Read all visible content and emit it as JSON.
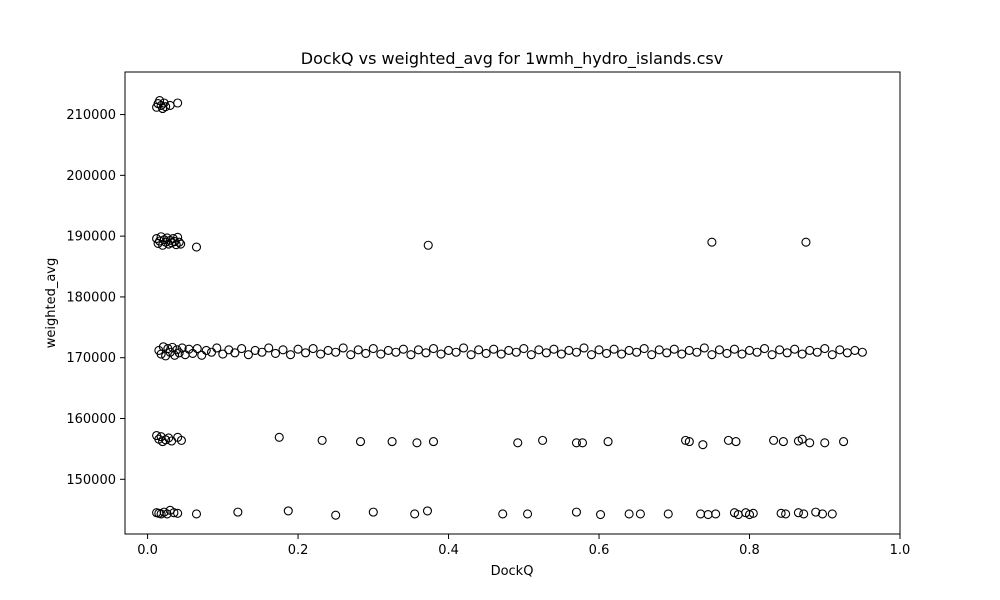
{
  "chart_data": {
    "type": "scatter",
    "title": "DockQ vs weighted_avg for 1wmh_hydro_islands.csv",
    "xlabel": "DockQ",
    "ylabel": "weighted_avg",
    "xlim": [
      -0.03,
      1.0
    ],
    "ylim": [
      141000,
      217000
    ],
    "xticks": [
      0.0,
      0.2,
      0.4,
      0.6,
      0.8,
      1.0
    ],
    "xtick_labels": [
      "0.0",
      "0.2",
      "0.4",
      "0.6",
      "0.8",
      "1.0"
    ],
    "yticks": [
      150000,
      160000,
      170000,
      180000,
      190000,
      200000,
      210000
    ],
    "ytick_labels": [
      "150000",
      "160000",
      "170000",
      "180000",
      "190000",
      "200000",
      "210000"
    ],
    "grid": false,
    "marker": "open-circle",
    "marker_color": "#000000",
    "series": [
      {
        "points": [
          [
            0.012,
            211200
          ],
          [
            0.014,
            211800
          ],
          [
            0.016,
            212300
          ],
          [
            0.018,
            211500
          ],
          [
            0.02,
            211000
          ],
          [
            0.022,
            211900
          ],
          [
            0.024,
            211300
          ],
          [
            0.03,
            211500
          ],
          [
            0.04,
            211900
          ],
          [
            0.012,
            189600
          ],
          [
            0.014,
            188800
          ],
          [
            0.016,
            189200
          ],
          [
            0.018,
            189900
          ],
          [
            0.02,
            188500
          ],
          [
            0.022,
            189400
          ],
          [
            0.024,
            189000
          ],
          [
            0.026,
            189700
          ],
          [
            0.028,
            188700
          ],
          [
            0.03,
            189300
          ],
          [
            0.032,
            188900
          ],
          [
            0.034,
            189600
          ],
          [
            0.036,
            189100
          ],
          [
            0.038,
            188600
          ],
          [
            0.04,
            189800
          ],
          [
            0.042,
            189000
          ],
          [
            0.044,
            188700
          ],
          [
            0.065,
            188200
          ],
          [
            0.373,
            188500
          ],
          [
            0.75,
            189000
          ],
          [
            0.875,
            189000
          ],
          [
            0.012,
            157200
          ],
          [
            0.015,
            156600
          ],
          [
            0.018,
            157000
          ],
          [
            0.02,
            156200
          ],
          [
            0.024,
            156500
          ],
          [
            0.028,
            156800
          ],
          [
            0.032,
            156300
          ],
          [
            0.04,
            156900
          ],
          [
            0.045,
            156400
          ],
          [
            0.175,
            156900
          ],
          [
            0.232,
            156400
          ],
          [
            0.283,
            156200
          ],
          [
            0.325,
            156200
          ],
          [
            0.358,
            156000
          ],
          [
            0.38,
            156200
          ],
          [
            0.492,
            156000
          ],
          [
            0.525,
            156400
          ],
          [
            0.57,
            156000
          ],
          [
            0.578,
            156000
          ],
          [
            0.612,
            156200
          ],
          [
            0.715,
            156400
          ],
          [
            0.72,
            156200
          ],
          [
            0.738,
            155700
          ],
          [
            0.772,
            156400
          ],
          [
            0.782,
            156200
          ],
          [
            0.832,
            156400
          ],
          [
            0.845,
            156200
          ],
          [
            0.865,
            156300
          ],
          [
            0.87,
            156600
          ],
          [
            0.88,
            156000
          ],
          [
            0.9,
            156000
          ],
          [
            0.925,
            156200
          ],
          [
            0.012,
            144500
          ],
          [
            0.015,
            144400
          ],
          [
            0.018,
            144300
          ],
          [
            0.022,
            144600
          ],
          [
            0.026,
            144300
          ],
          [
            0.03,
            144900
          ],
          [
            0.035,
            144500
          ],
          [
            0.04,
            144400
          ],
          [
            0.065,
            144300
          ],
          [
            0.12,
            144600
          ],
          [
            0.187,
            144800
          ],
          [
            0.25,
            144100
          ],
          [
            0.3,
            144600
          ],
          [
            0.355,
            144300
          ],
          [
            0.372,
            144800
          ],
          [
            0.472,
            144300
          ],
          [
            0.505,
            144300
          ],
          [
            0.57,
            144600
          ],
          [
            0.602,
            144200
          ],
          [
            0.64,
            144300
          ],
          [
            0.655,
            144300
          ],
          [
            0.692,
            144300
          ],
          [
            0.735,
            144300
          ],
          [
            0.745,
            144200
          ],
          [
            0.755,
            144300
          ],
          [
            0.78,
            144500
          ],
          [
            0.785,
            144200
          ],
          [
            0.795,
            144500
          ],
          [
            0.8,
            144200
          ],
          [
            0.805,
            144400
          ],
          [
            0.842,
            144400
          ],
          [
            0.848,
            144300
          ],
          [
            0.865,
            144500
          ],
          [
            0.872,
            144300
          ],
          [
            0.888,
            144600
          ],
          [
            0.897,
            144300
          ],
          [
            0.91,
            144300
          ],
          [
            0.015,
            171200
          ],
          [
            0.018,
            170600
          ],
          [
            0.021,
            171800
          ],
          [
            0.024,
            170300
          ],
          [
            0.027,
            171500
          ],
          [
            0.03,
            170900
          ],
          [
            0.033,
            171700
          ],
          [
            0.036,
            170400
          ],
          [
            0.039,
            171300
          ],
          [
            0.042,
            170800
          ],
          [
            0.046,
            171600
          ],
          [
            0.05,
            170500
          ],
          [
            0.055,
            171400
          ],
          [
            0.06,
            170700
          ],
          [
            0.066,
            171500
          ],
          [
            0.072,
            170400
          ],
          [
            0.078,
            171200
          ],
          [
            0.085,
            170900
          ],
          [
            0.092,
            171600
          ],
          [
            0.1,
            170600
          ],
          [
            0.108,
            171300
          ],
          [
            0.116,
            170800
          ],
          [
            0.125,
            171500
          ],
          [
            0.134,
            170500
          ],
          [
            0.143,
            171200
          ],
          [
            0.152,
            170900
          ],
          [
            0.161,
            171600
          ],
          [
            0.17,
            170700
          ],
          [
            0.18,
            171300
          ],
          [
            0.19,
            170500
          ],
          [
            0.2,
            171400
          ],
          [
            0.21,
            170800
          ],
          [
            0.22,
            171500
          ],
          [
            0.23,
            170600
          ],
          [
            0.24,
            171200
          ],
          [
            0.25,
            170900
          ],
          [
            0.26,
            171600
          ],
          [
            0.27,
            170500
          ],
          [
            0.28,
            171300
          ],
          [
            0.29,
            170700
          ],
          [
            0.3,
            171500
          ],
          [
            0.31,
            170600
          ],
          [
            0.32,
            171200
          ],
          [
            0.33,
            170900
          ],
          [
            0.34,
            171400
          ],
          [
            0.35,
            170500
          ],
          [
            0.36,
            171300
          ],
          [
            0.37,
            170800
          ],
          [
            0.38,
            171500
          ],
          [
            0.39,
            170600
          ],
          [
            0.4,
            171200
          ],
          [
            0.41,
            170900
          ],
          [
            0.42,
            171600
          ],
          [
            0.43,
            170500
          ],
          [
            0.44,
            171300
          ],
          [
            0.45,
            170700
          ],
          [
            0.46,
            171400
          ],
          [
            0.47,
            170600
          ],
          [
            0.48,
            171200
          ],
          [
            0.49,
            170900
          ],
          [
            0.5,
            171500
          ],
          [
            0.51,
            170500
          ],
          [
            0.52,
            171300
          ],
          [
            0.53,
            170800
          ],
          [
            0.54,
            171400
          ],
          [
            0.55,
            170600
          ],
          [
            0.56,
            171200
          ],
          [
            0.57,
            170900
          ],
          [
            0.58,
            171600
          ],
          [
            0.59,
            170500
          ],
          [
            0.6,
            171300
          ],
          [
            0.61,
            170700
          ],
          [
            0.62,
            171400
          ],
          [
            0.63,
            170600
          ],
          [
            0.64,
            171200
          ],
          [
            0.65,
            170900
          ],
          [
            0.66,
            171500
          ],
          [
            0.67,
            170500
          ],
          [
            0.68,
            171300
          ],
          [
            0.69,
            170800
          ],
          [
            0.7,
            171400
          ],
          [
            0.71,
            170600
          ],
          [
            0.72,
            171200
          ],
          [
            0.73,
            170900
          ],
          [
            0.74,
            171600
          ],
          [
            0.75,
            170500
          ],
          [
            0.76,
            171300
          ],
          [
            0.77,
            170700
          ],
          [
            0.78,
            171400
          ],
          [
            0.79,
            170600
          ],
          [
            0.8,
            171200
          ],
          [
            0.81,
            170900
          ],
          [
            0.82,
            171500
          ],
          [
            0.83,
            170500
          ],
          [
            0.84,
            171300
          ],
          [
            0.85,
            170800
          ],
          [
            0.86,
            171400
          ],
          [
            0.87,
            170600
          ],
          [
            0.88,
            171200
          ],
          [
            0.89,
            170900
          ],
          [
            0.9,
            171500
          ],
          [
            0.91,
            170500
          ],
          [
            0.92,
            171300
          ],
          [
            0.93,
            170800
          ],
          [
            0.94,
            171200
          ],
          [
            0.95,
            170900
          ]
        ]
      }
    ]
  }
}
